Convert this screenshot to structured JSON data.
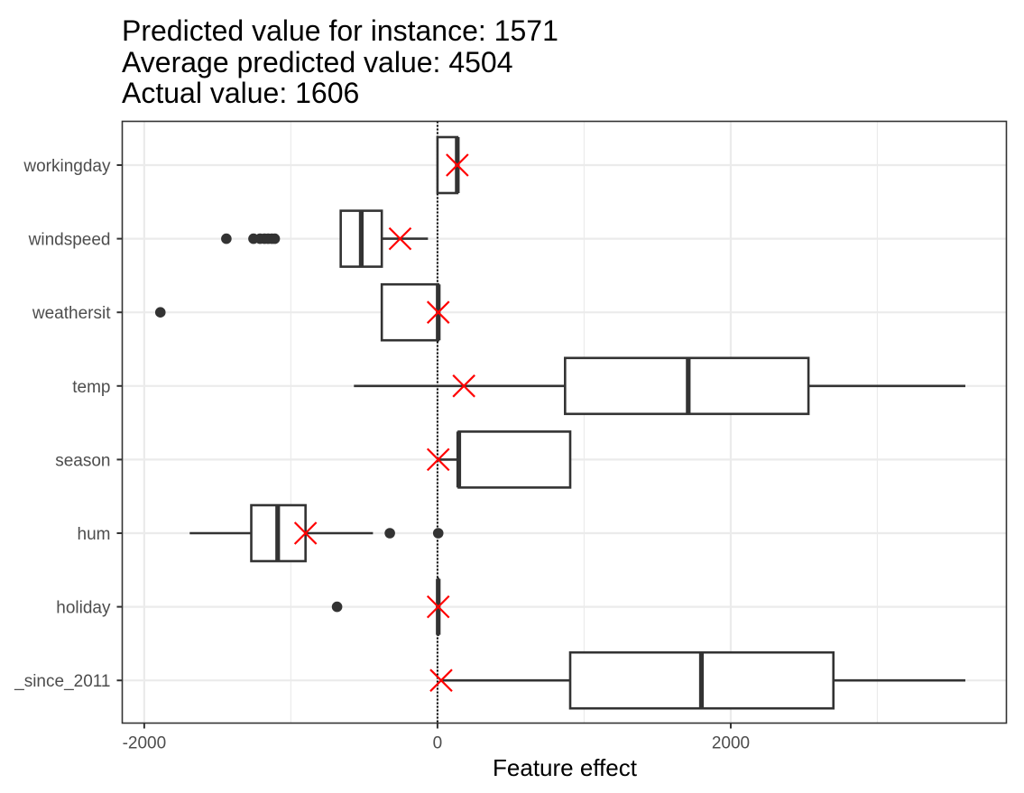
{
  "chart_data": {
    "type": "boxplot",
    "orientation": "horizontal",
    "title_lines": [
      "Predicted value for instance: 1571",
      "Average predicted value: 4504",
      "Actual value: 1606"
    ],
    "xlabel": "Feature effect",
    "ylabel": "",
    "xlim": [
      -2150,
      3880
    ],
    "xticks": [
      -2000,
      0,
      2000
    ],
    "xtick_labels": [
      "-2000",
      "0",
      "2000"
    ],
    "minor_gridlines": [
      -1000,
      1000,
      3000
    ],
    "reference_line": {
      "x": 0,
      "style": "dotted"
    },
    "colors": {
      "box": "#333333",
      "instance_marker": "#ff0000",
      "grid": "#ebebeb",
      "panel_border": "#333333"
    },
    "features": [
      {
        "label": "workingday",
        "whisker_low": 0,
        "q1": 0,
        "median": 135,
        "q3": 135,
        "whisker_high": 135,
        "outliers": [],
        "instance": 135
      },
      {
        "label": "windspeed",
        "whisker_low": -660,
        "q1": -660,
        "median": -520,
        "q3": -380,
        "whisker_high": -65,
        "outliers": [
          -1440,
          -1255,
          -1210,
          -1180,
          -1155,
          -1130,
          -1110
        ],
        "instance": -255
      },
      {
        "label": "weathersit",
        "whisker_low": -380,
        "q1": -380,
        "median": 5,
        "q3": 5,
        "whisker_high": 5,
        "outliers": [
          -1890
        ],
        "instance": 5
      },
      {
        "label": "temp",
        "whisker_low": -570,
        "q1": 870,
        "median": 1710,
        "q3": 2530,
        "whisker_high": 3600,
        "outliers": [],
        "instance": 180
      },
      {
        "label": "season",
        "whisker_low": 0,
        "q1": 145,
        "median": 145,
        "q3": 905,
        "whisker_high": 905,
        "outliers": [],
        "instance": 5
      },
      {
        "label": "hum",
        "whisker_low": -1690,
        "q1": -1270,
        "median": -1090,
        "q3": -900,
        "whisker_high": -440,
        "outliers": [
          -325,
          5
        ],
        "instance": -900
      },
      {
        "label": "holiday",
        "whisker_low": 5,
        "q1": 5,
        "median": 5,
        "q3": 5,
        "whisker_high": 5,
        "outliers": [
          -685
        ],
        "instance": 5
      },
      {
        "label": "_since_2011",
        "whisker_low": 25,
        "q1": 905,
        "median": 1800,
        "q3": 2700,
        "whisker_high": 3600,
        "outliers": [],
        "instance": 25
      }
    ]
  }
}
